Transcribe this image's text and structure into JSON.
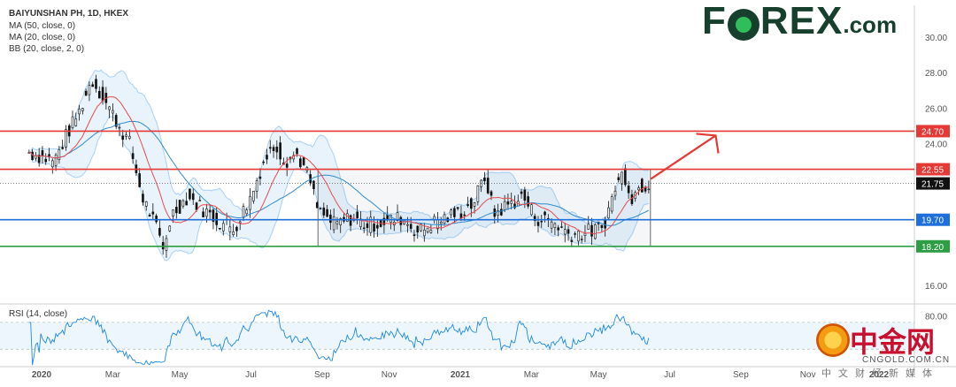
{
  "legend": {
    "title": "BAIYUNSHAN PH, 1D, HKEX",
    "ma50": "MA (50, close, 0)",
    "ma20": "MA (20, close, 0)",
    "bb": "BB (20, close, 2, 0)",
    "rsi": "RSI (14, close)"
  },
  "logo": {
    "part1": "F",
    "part2": "REX",
    "suffix": ".com"
  },
  "watermark": {
    "cn": "中金网",
    "domain": "CNGOLD.COM.CN",
    "sub": "中文财经新媒体"
  },
  "colors": {
    "up": "#26a69a",
    "down": "#111111",
    "candle": "#111111",
    "ma50": "#2f8ccf",
    "ma20": "#e84a4a",
    "bb": "#1e88e5",
    "resist": "#e53935",
    "support_blue": "#1e6fd9",
    "support_green": "#2e9e45",
    "arrow": "#e53935",
    "rsi": "#1e88e5"
  },
  "chart_data": {
    "type": "candlestick",
    "title": "BAIYUNSHAN PH, 1D, HKEX",
    "x_ticks": [
      "2020",
      "Mar",
      "May",
      "Jul",
      "Sep",
      "Nov",
      "2021",
      "Mar",
      "May",
      "Jul",
      "Sep",
      "Nov",
      "2022"
    ],
    "y_ticks": [
      16.0,
      18.0,
      20.0,
      22.0,
      24.0,
      26.0,
      28.0,
      30.0
    ],
    "y_tick_labels": [
      "16.00",
      "",
      "",
      "",
      "24.00",
      "26.00",
      "28.00",
      "30.00"
    ],
    "ylim": [
      15.0,
      31.8
    ],
    "levels": [
      {
        "value": 24.7,
        "label": "24.70",
        "color": "#e53935"
      },
      {
        "value": 22.55,
        "label": "22.55",
        "color": "#e53935"
      },
      {
        "value": 19.7,
        "label": "19.70",
        "color": "#1e6fd9"
      },
      {
        "value": 18.2,
        "label": "18.20",
        "color": "#2e9e45"
      }
    ],
    "last_price": {
      "value": 21.75,
      "label": "21.75"
    },
    "price_path": [
      [
        2019.97,
        23.5
      ],
      [
        2020.03,
        23.0
      ],
      [
        2020.06,
        24.5
      ],
      [
        2020.09,
        25.8
      ],
      [
        2020.12,
        27.6
      ],
      [
        2020.15,
        26.5
      ],
      [
        2020.18,
        25.2
      ],
      [
        2020.21,
        24.0
      ],
      [
        2020.24,
        21.0
      ],
      [
        2020.27,
        19.5
      ],
      [
        2020.29,
        18.0
      ],
      [
        2020.31,
        20.0
      ],
      [
        2020.35,
        21.0
      ],
      [
        2020.39,
        20.2
      ],
      [
        2020.43,
        19.5
      ],
      [
        2020.46,
        19.2
      ],
      [
        2020.5,
        21.0
      ],
      [
        2020.53,
        23.0
      ],
      [
        2020.56,
        24.0
      ],
      [
        2020.58,
        23.0
      ],
      [
        2020.61,
        23.4
      ],
      [
        2020.64,
        22.0
      ],
      [
        2020.66,
        20.2
      ],
      [
        2020.7,
        19.4
      ],
      [
        2020.74,
        19.8
      ],
      [
        2020.78,
        19.4
      ],
      [
        2020.82,
        19.6
      ],
      [
        2020.86,
        19.8
      ],
      [
        2020.9,
        19.0
      ],
      [
        2020.94,
        19.6
      ],
      [
        2020.99,
        20.0
      ],
      [
        2021.03,
        20.6
      ],
      [
        2021.06,
        22.2
      ],
      [
        2021.08,
        20.0
      ],
      [
        2021.11,
        20.5
      ],
      [
        2021.15,
        21.0
      ],
      [
        2021.18,
        19.8
      ],
      [
        2021.22,
        19.6
      ],
      [
        2021.26,
        18.9
      ],
      [
        2021.3,
        19.0
      ],
      [
        2021.34,
        19.2
      ],
      [
        2021.37,
        21.5
      ],
      [
        2021.39,
        22.4
      ],
      [
        2021.41,
        21.0
      ],
      [
        2021.43,
        21.6
      ],
      [
        2021.45,
        21.75
      ]
    ],
    "rsi_labels": [
      "80.00"
    ],
    "rsi_bounds": [
      30,
      70
    ],
    "annotations": [
      "range box Sep 2020 – May 2021 between 18.20 and 22.55",
      "red arrow projecting to 24.70"
    ]
  }
}
